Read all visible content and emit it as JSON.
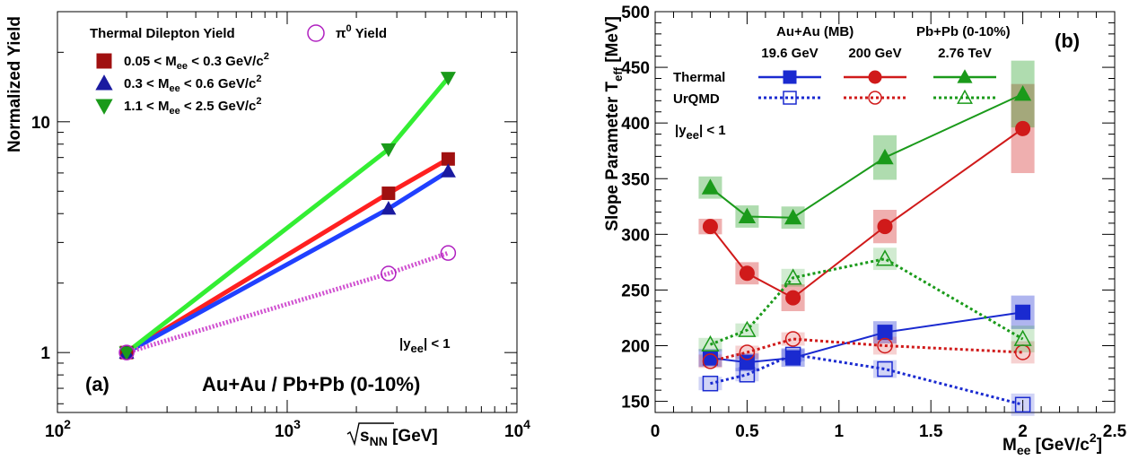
{
  "chart_data": [
    {
      "type": "line",
      "panel_label": "(a)",
      "xlabel": "√s_NN [GeV]",
      "xlabel_parts": {
        "main": "s",
        "sub": "NN",
        "unit": " [GeV]"
      },
      "ylabel": "Normalized Yield",
      "x_scale": "log",
      "y_scale": "log",
      "xlim": [
        100,
        10000
      ],
      "ylim": [
        0.55,
        30
      ],
      "x_tick_labels": [
        {
          "value": 100,
          "base": "10",
          "exp": "2"
        },
        {
          "value": 1000,
          "base": "10",
          "exp": "3"
        },
        {
          "value": 10000,
          "base": "10",
          "exp": "4"
        }
      ],
      "y_tick_labels": [
        {
          "value": 1,
          "label": "1"
        },
        {
          "value": 10,
          "label": "10"
        }
      ],
      "legend_title": "Thermal Dilepton Yield",
      "series": [
        {
          "name": "0.05 < M_ee < 0.3 GeV/c^2",
          "legend": {
            "pre": "0.05 < M",
            "sub": "ee",
            "mid": " < 0.3 GeV/c",
            "sup": "2"
          },
          "marker": "square",
          "color": "#a01010",
          "line_color": "#ff2020",
          "x": [
            200,
            2760,
            5020
          ],
          "y": [
            1.0,
            4.9,
            6.9
          ]
        },
        {
          "name": "0.3 < M_ee < 0.6 GeV/c^2",
          "legend": {
            "pre": "0.3 < M",
            "sub": "ee",
            "mid": " < 0.6 GeV/c",
            "sup": "2"
          },
          "marker": "triangle-up",
          "color": "#1a1aa0",
          "line_color": "#2040ff",
          "x": [
            200,
            2760,
            5020
          ],
          "y": [
            1.0,
            4.2,
            6.1
          ]
        },
        {
          "name": "1.1 < M_ee < 2.5 GeV/c^2",
          "legend": {
            "pre": "1.1 < M",
            "sub": "ee",
            "mid": " < 2.5 GeV/c",
            "sup": "2"
          },
          "marker": "triangle-down",
          "color": "#1a9a1a",
          "line_color": "#33ee33",
          "x": [
            200,
            2760,
            5020
          ],
          "y": [
            1.0,
            7.6,
            15.5
          ]
        },
        {
          "name": "π0 Yield",
          "legend": {
            "pre": "π",
            "sup": "0",
            "mid": " Yield"
          },
          "marker": "open-circle",
          "color": "#b020c0",
          "line_color": "#d050d0",
          "dashed": true,
          "x": [
            200,
            2760,
            5020
          ],
          "y": [
            1.0,
            2.2,
            2.7
          ]
        }
      ],
      "annotations": [
        {
          "key": "rapidity",
          "pre": "|y",
          "sub": "ee",
          "post": "| < 1"
        },
        {
          "key": "system",
          "text": "Au+Au / Pb+Pb (0-10%)"
        }
      ]
    },
    {
      "type": "line",
      "panel_label": "(b)",
      "xlabel": "M_ee [GeV/c^2]",
      "xlabel_parts": {
        "main": "M",
        "sub": "ee",
        "unit": " [GeV/c",
        "sup": "2",
        "close": "]"
      },
      "ylabel": "Slope Parameter T_eff [MeV]",
      "ylabel_parts": {
        "main": "Slope Parameter T",
        "sub": "eff",
        "unit": " [MeV]"
      },
      "xlim": [
        0,
        2.5
      ],
      "ylim": [
        140,
        500
      ],
      "x_ticks": [
        "0",
        "0.5",
        "1",
        "1.5",
        "2",
        "2.5"
      ],
      "y_ticks": [
        "150",
        "200",
        "250",
        "300",
        "350",
        "400",
        "450",
        "500"
      ],
      "legend": {
        "headers": [
          "Au+Au (MB)",
          "Pb+Pb (0-10%)"
        ],
        "energies": [
          "19.6 GeV",
          "200 GeV",
          "2.76 TeV"
        ],
        "rows": [
          "Thermal",
          "UrQMD"
        ]
      },
      "annotation": {
        "pre": "|y",
        "sub": "ee",
        "post": "| < 1"
      },
      "series": [
        {
          "name": "Thermal 19.6 GeV",
          "color": "#1a2ad0",
          "marker": "square",
          "filled": true,
          "dashed": false,
          "x": [
            0.3,
            0.5,
            0.75,
            1.25,
            2.0
          ],
          "y": [
            189,
            185,
            189,
            212,
            230
          ],
          "err": [
            8,
            8,
            8,
            10,
            15
          ]
        },
        {
          "name": "Thermal 200 GeV",
          "color": "#d01a1a",
          "marker": "circle",
          "filled": true,
          "dashed": false,
          "x": [
            0.3,
            0.5,
            0.75,
            1.25,
            2.0
          ],
          "y": [
            307,
            265,
            243,
            307,
            395
          ],
          "err": [
            7,
            10,
            12,
            15,
            40
          ]
        },
        {
          "name": "Thermal 2.76 TeV",
          "color": "#1a9a1a",
          "marker": "triangle-up",
          "filled": true,
          "dashed": false,
          "x": [
            0.3,
            0.5,
            0.75,
            1.25,
            2.0
          ],
          "y": [
            342,
            316,
            315,
            369,
            426
          ],
          "err": [
            10,
            10,
            10,
            20,
            30
          ]
        },
        {
          "name": "UrQMD 19.6 GeV",
          "color": "#1a2ad0",
          "marker": "square",
          "filled": false,
          "dashed": true,
          "x": [
            0.3,
            0.5,
            0.75,
            1.25,
            2.0
          ],
          "y": [
            166,
            174,
            192,
            179,
            147
          ],
          "err": [
            6,
            6,
            6,
            8,
            10
          ]
        },
        {
          "name": "UrQMD 200 GeV",
          "color": "#d01a1a",
          "marker": "circle",
          "filled": false,
          "dashed": true,
          "x": [
            0.3,
            0.5,
            0.75,
            1.25,
            2.0
          ],
          "y": [
            186,
            194,
            206,
            200,
            194
          ],
          "err": [
            6,
            6,
            6,
            8,
            10
          ]
        },
        {
          "name": "UrQMD 2.76 TeV",
          "color": "#1a9a1a",
          "marker": "triangle-up",
          "filled": false,
          "dashed": true,
          "x": [
            0.3,
            0.5,
            0.75,
            1.25,
            2.0
          ],
          "y": [
            201,
            214,
            261,
            278,
            206
          ],
          "err": [
            6,
            6,
            8,
            10,
            12
          ]
        }
      ]
    }
  ]
}
